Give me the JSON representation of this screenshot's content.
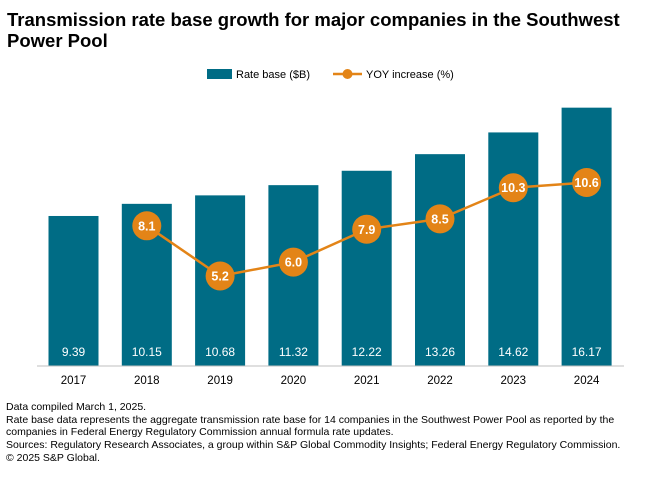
{
  "title": "Transmission rate base growth for major companies in the Southwest Power Pool",
  "notes": [
    "Data compiled March 1, 2025.",
    "Rate base data represents the aggregate transmission rate base for 14 companies in the Southwest Power Pool as reported by the companies in Federal Energy Regulatory Commission annual formula rate updates.",
    "Sources: Regulatory Research Associates, a group within S&P Global Commodity Insights; Federal Energy Regulatory Commission.",
    "© 2025 S&P Global."
  ],
  "colors": {
    "bar": "#006c85",
    "line": "#e38417",
    "bar_label": "#ffffff",
    "marker_label": "#ffffff",
    "axis": "#bfbfbf"
  },
  "chart_data": {
    "type": "bar",
    "categories": [
      "2017",
      "2018",
      "2019",
      "2020",
      "2021",
      "2022",
      "2023",
      "2024"
    ],
    "series": [
      {
        "name": "Rate base ($B)",
        "type": "bar",
        "axis": "left",
        "values": [
          9.39,
          10.15,
          10.68,
          11.32,
          12.22,
          13.26,
          14.62,
          16.17
        ]
      },
      {
        "name": "YOY increase (%)",
        "type": "line",
        "axis": "right",
        "values": [
          null,
          8.1,
          5.2,
          6.0,
          7.9,
          8.5,
          10.3,
          10.6
        ],
        "labels": [
          null,
          "8.1",
          "5.2",
          "6.0",
          "7.9",
          "8.5",
          "10.3",
          "10.6"
        ]
      }
    ],
    "ylim_left": [
      0,
      16.9
    ],
    "ylim_right": [
      0,
      15.6
    ],
    "legend": "top-center",
    "grid": false,
    "y_axes_visible": false
  }
}
